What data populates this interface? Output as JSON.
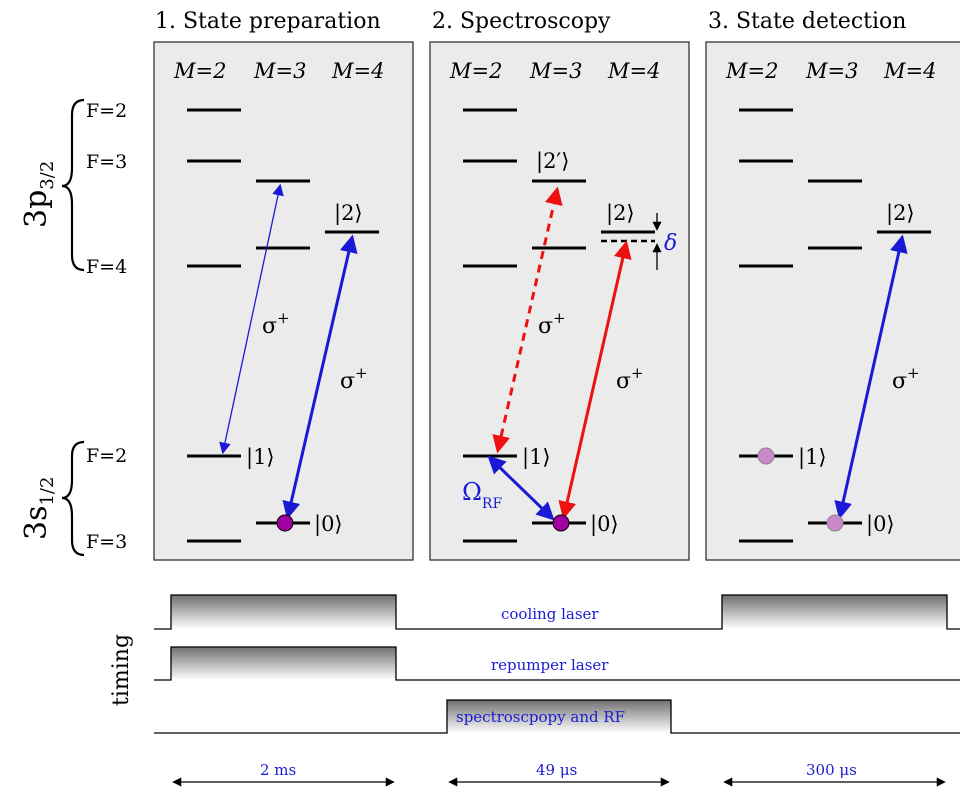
{
  "titles": [
    "1. State preparation",
    "2. Spectroscopy",
    "3. State detection"
  ],
  "m_labels": {
    "m2": "M=2",
    "m3": "M=3",
    "m4": "M=4"
  },
  "upper_manifold": {
    "shell": "3p",
    "sub": "3/2",
    "f_labels": [
      "F=2",
      "F=3",
      "F=4"
    ]
  },
  "lower_manifold": {
    "shell": "3s",
    "sub": "1/2",
    "f_labels": [
      "F=2",
      "F=3"
    ]
  },
  "kets": {
    "ket1": "|1⟩",
    "ket0": "|0⟩",
    "ket2": "|2⟩",
    "ket2p": "|2′⟩"
  },
  "sigma": "σ",
  "sigma_sup": "+",
  "delta": "δ",
  "omega": "Ω",
  "omega_sub": "RF",
  "timing": {
    "axis_label": "timing",
    "cooling": "cooling laser",
    "repumper": "repumper laser",
    "spectroscopy": "spectroscpopy and RF"
  },
  "durations": [
    "2 ms",
    "49 μs",
    "300 μs"
  ],
  "colors": {
    "blue": "#1a1ad6",
    "red": "#ee1111",
    "magenta": "#a000a0",
    "panel": "#ebebeb"
  }
}
